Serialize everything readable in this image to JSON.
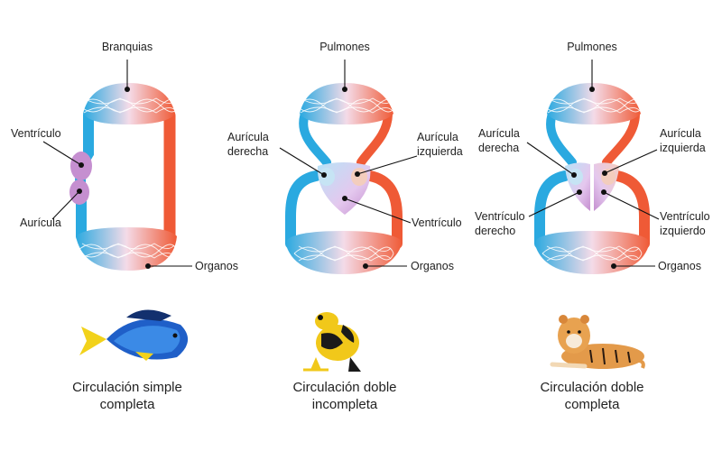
{
  "panels": [
    {
      "id": "simple",
      "labels": {
        "gas_exchange": "Branquias",
        "ventricle": "Ventrículo",
        "atrium": "Aurícula",
        "organs": "Organos"
      },
      "caption_line1": "Circulación simple",
      "caption_line2": "completa",
      "animal_icon": "fish-icon",
      "colors": {
        "deoxygenated": "#2aa9e0",
        "oxygenated": "#ef5a36",
        "heart": "#c58fd0"
      }
    },
    {
      "id": "double-incomplete",
      "labels": {
        "gas_exchange": "Pulmones",
        "right_atrium_l1": "Aurícula",
        "right_atrium_l2": "derecha",
        "left_atrium_l1": "Aurícula",
        "left_atrium_l2": "izquierda",
        "ventricle": "Ventrículo",
        "organs": "Organos"
      },
      "caption_line1": "Circulación doble",
      "caption_line2": "incompleta",
      "animal_icon": "frog-icon"
    },
    {
      "id": "double-complete",
      "labels": {
        "gas_exchange": "Pulmones",
        "right_atrium_l1": "Aurícula",
        "right_atrium_l2": "derecha",
        "left_atrium_l1": "Aurícula",
        "left_atrium_l2": "izquierda",
        "right_ventricle_l1": "Ventrículo",
        "right_ventricle_l2": "derecho",
        "left_ventricle_l1": "Ventrículo",
        "left_ventricle_l2": "izquierdo",
        "organs": "Organos"
      },
      "caption_line1": "Circulación doble",
      "caption_line2": "completa",
      "animal_icon": "tiger-icon"
    }
  ]
}
